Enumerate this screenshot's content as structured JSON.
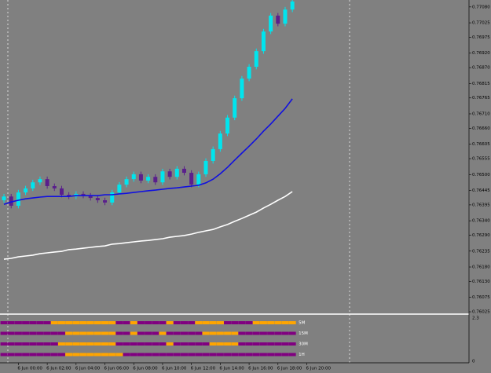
{
  "chart_data": [
    {
      "type": "candlestick",
      "up_color": "#00e5ee",
      "down_color": "#5a1f8c",
      "open": [
        0.76411,
        0.76424,
        0.76392,
        0.76438,
        0.76452,
        0.76473,
        0.76484,
        0.7646,
        0.76452,
        0.7643,
        0.76424,
        0.76433,
        0.76427,
        0.76419,
        0.76411,
        0.76403,
        0.76438,
        0.76465,
        0.76484,
        0.76501,
        0.76479,
        0.76492,
        0.76473,
        0.76511,
        0.76492,
        0.7652,
        0.76506,
        0.76465,
        0.76501,
        0.76547,
        0.76588,
        0.76642,
        0.76697,
        0.76764,
        0.76832,
        0.76873,
        0.76927,
        0.76995,
        0.7705,
        0.77022,
        0.77071
      ],
      "high": [
        0.76433,
        0.76433,
        0.76447,
        0.76461,
        0.76482,
        0.76493,
        0.76493,
        0.76469,
        0.76461,
        0.76439,
        0.76442,
        0.76442,
        0.76436,
        0.76428,
        0.7642,
        0.76447,
        0.76474,
        0.76493,
        0.7651,
        0.7651,
        0.76501,
        0.76501,
        0.7652,
        0.7652,
        0.76529,
        0.76529,
        0.76515,
        0.7651,
        0.76556,
        0.76597,
        0.76651,
        0.76706,
        0.76773,
        0.76841,
        0.76882,
        0.76936,
        0.77004,
        0.77059,
        0.77059,
        0.7708,
        0.77108
      ],
      "low": [
        0.76402,
        0.76383,
        0.76383,
        0.76429,
        0.76443,
        0.76464,
        0.76451,
        0.76443,
        0.76421,
        0.76415,
        0.76415,
        0.76418,
        0.7641,
        0.76402,
        0.76394,
        0.76394,
        0.76429,
        0.76456,
        0.76475,
        0.7647,
        0.7647,
        0.76464,
        0.76464,
        0.76483,
        0.76483,
        0.76497,
        0.76456,
        0.76456,
        0.76492,
        0.76538,
        0.76579,
        0.76633,
        0.76688,
        0.76755,
        0.76823,
        0.76864,
        0.76918,
        0.76986,
        0.77013,
        0.77013,
        0.77062
      ],
      "close": [
        0.76424,
        0.76392,
        0.76438,
        0.76452,
        0.76473,
        0.76484,
        0.7646,
        0.76452,
        0.7643,
        0.76424,
        0.76433,
        0.76427,
        0.76419,
        0.76411,
        0.76403,
        0.76438,
        0.76465,
        0.76484,
        0.76501,
        0.76479,
        0.76492,
        0.76473,
        0.76511,
        0.76492,
        0.7652,
        0.76506,
        0.76465,
        0.76501,
        0.76547,
        0.76588,
        0.76642,
        0.76697,
        0.76764,
        0.76832,
        0.76873,
        0.76927,
        0.76995,
        0.7705,
        0.77022,
        0.77071,
        0.77099
      ],
      "lines": [
        {
          "color": "#1010e0",
          "values": [
            0.76397,
            0.76405,
            0.76411,
            0.76416,
            0.76419,
            0.76422,
            0.76424,
            0.76424,
            0.76424,
            0.76424,
            0.76427,
            0.76427,
            0.76427,
            0.76427,
            0.7643,
            0.7643,
            0.76433,
            0.76435,
            0.76438,
            0.76441,
            0.76444,
            0.76446,
            0.76449,
            0.76452,
            0.76454,
            0.76457,
            0.7646,
            0.76463,
            0.76471,
            0.76484,
            0.76503,
            0.76525,
            0.7655,
            0.76574,
            0.76598,
            0.76623,
            0.7665,
            0.76675,
            0.76702,
            0.76729,
            0.76762
          ]
        },
        {
          "color": "#ffffff",
          "values": [
            0.76207,
            0.7621,
            0.76215,
            0.76218,
            0.76221,
            0.76226,
            0.76229,
            0.76232,
            0.76234,
            0.7624,
            0.76242,
            0.76245,
            0.76248,
            0.76251,
            0.76253,
            0.76259,
            0.76261,
            0.76264,
            0.76267,
            0.7627,
            0.76272,
            0.76275,
            0.76278,
            0.76283,
            0.76286,
            0.76289,
            0.76294,
            0.763,
            0.76305,
            0.7631,
            0.76319,
            0.76327,
            0.76338,
            0.76348,
            0.76359,
            0.7637,
            0.76384,
            0.76397,
            0.76411,
            0.76424,
            0.76441
          ]
        }
      ],
      "xlim": [
        -0.55,
        64.5
      ],
      "xticks": [
        {
          "value": 2,
          "label": "6 Jun 00:00"
        },
        {
          "value": 6,
          "label": "6 Jun 02:00"
        },
        {
          "value": 10,
          "label": "6 Jun 04:00"
        },
        {
          "value": 14,
          "label": "6 Jun 06:00"
        },
        {
          "value": 18,
          "label": "6 Jun 08:00"
        },
        {
          "value": 22,
          "label": "6 Jun 10:00"
        },
        {
          "value": 26,
          "label": "6 Jun 12:00"
        },
        {
          "value": 30,
          "label": "6 Jun 14:00"
        },
        {
          "value": 34,
          "label": "6 Jun 16:00"
        },
        {
          "value": 38,
          "label": "6 Jun 18:00"
        },
        {
          "value": 42,
          "label": "6 Jun 20:00"
        }
      ],
      "ylim": [
        0.76017,
        0.77104
      ],
      "yticks": [
        {
          "value": 0.7708,
          "label": "0.77080"
        },
        0.77025,
        0.76975,
        {
          "value": 0.7692,
          "label": "0.76920"
        },
        {
          "value": 0.7687,
          "label": "0.76870"
        },
        0.76815,
        0.76765,
        {
          "value": 0.7671,
          "label": "0.76710"
        },
        {
          "value": 0.7666,
          "label": "0.76660"
        },
        0.76605,
        0.76555,
        {
          "value": 0.765,
          "label": "0.76500"
        },
        0.76445,
        0.76395,
        {
          "value": 0.7634,
          "label": "0.76340"
        },
        {
          "value": 0.7629,
          "label": "0.76290"
        },
        0.76235,
        {
          "value": 0.7618,
          "label": "0.76180"
        },
        {
          "value": 0.7613,
          "label": "0.76130"
        },
        0.76075,
        0.76025
      ]
    },
    {
      "type": "signal-grid",
      "ylim": [
        0,
        2.3
      ],
      "yticks": [
        2.3,
        0
      ],
      "rows": [
        {
          "label": "5M",
          "cells": [
            "purple",
            "purple",
            "purple",
            "purple",
            "purple",
            "purple",
            "purple",
            "orange",
            "orange",
            "orange",
            "orange",
            "orange",
            "orange",
            "orange",
            "orange",
            "orange",
            "purple",
            "purple",
            "orange",
            "purple",
            "purple",
            "purple",
            "purple",
            "orange",
            "purple",
            "purple",
            "purple",
            "orange",
            "orange",
            "orange",
            "orange",
            "purple",
            "purple",
            "purple",
            "purple",
            "orange",
            "orange",
            "orange",
            "orange",
            "orange",
            "orange"
          ]
        },
        {
          "label": "15M",
          "cells": [
            "purple",
            "purple",
            "purple",
            "purple",
            "purple",
            "purple",
            "purple",
            "purple",
            "purple",
            "orange",
            "orange",
            "orange",
            "orange",
            "orange",
            "orange",
            "orange",
            "purple",
            "purple",
            "orange",
            "purple",
            "purple",
            "purple",
            "orange",
            "purple",
            "purple",
            "purple",
            "purple",
            "purple",
            "orange",
            "orange",
            "orange",
            "orange",
            "orange",
            "purple",
            "purple",
            "purple",
            "purple",
            "purple",
            "purple",
            "purple",
            "purple"
          ]
        },
        {
          "label": "30M",
          "cells": [
            "purple",
            "purple",
            "purple",
            "purple",
            "purple",
            "purple",
            "purple",
            "purple",
            "orange",
            "orange",
            "orange",
            "orange",
            "orange",
            "orange",
            "orange",
            "orange",
            "purple",
            "purple",
            "purple",
            "purple",
            "purple",
            "purple",
            "purple",
            "orange",
            "purple",
            "purple",
            "purple",
            "purple",
            "purple",
            "orange",
            "orange",
            "orange",
            "orange",
            "purple",
            "purple",
            "purple",
            "purple",
            "purple",
            "purple",
            "purple",
            "purple"
          ]
        },
        {
          "label": "1H",
          "cells": [
            "purple",
            "purple",
            "purple",
            "purple",
            "purple",
            "purple",
            "purple",
            "purple",
            "purple",
            "orange",
            "orange",
            "orange",
            "orange",
            "orange",
            "orange",
            "orange",
            "orange",
            "purple",
            "purple",
            "purple",
            "purple",
            "purple",
            "purple",
            "purple",
            "purple",
            "purple",
            "purple",
            "purple",
            "purple",
            "purple",
            "purple",
            "purple",
            "purple",
            "purple",
            "purple",
            "purple",
            "purple",
            "purple",
            "purple",
            "purple",
            "purple"
          ]
        }
      ]
    }
  ]
}
